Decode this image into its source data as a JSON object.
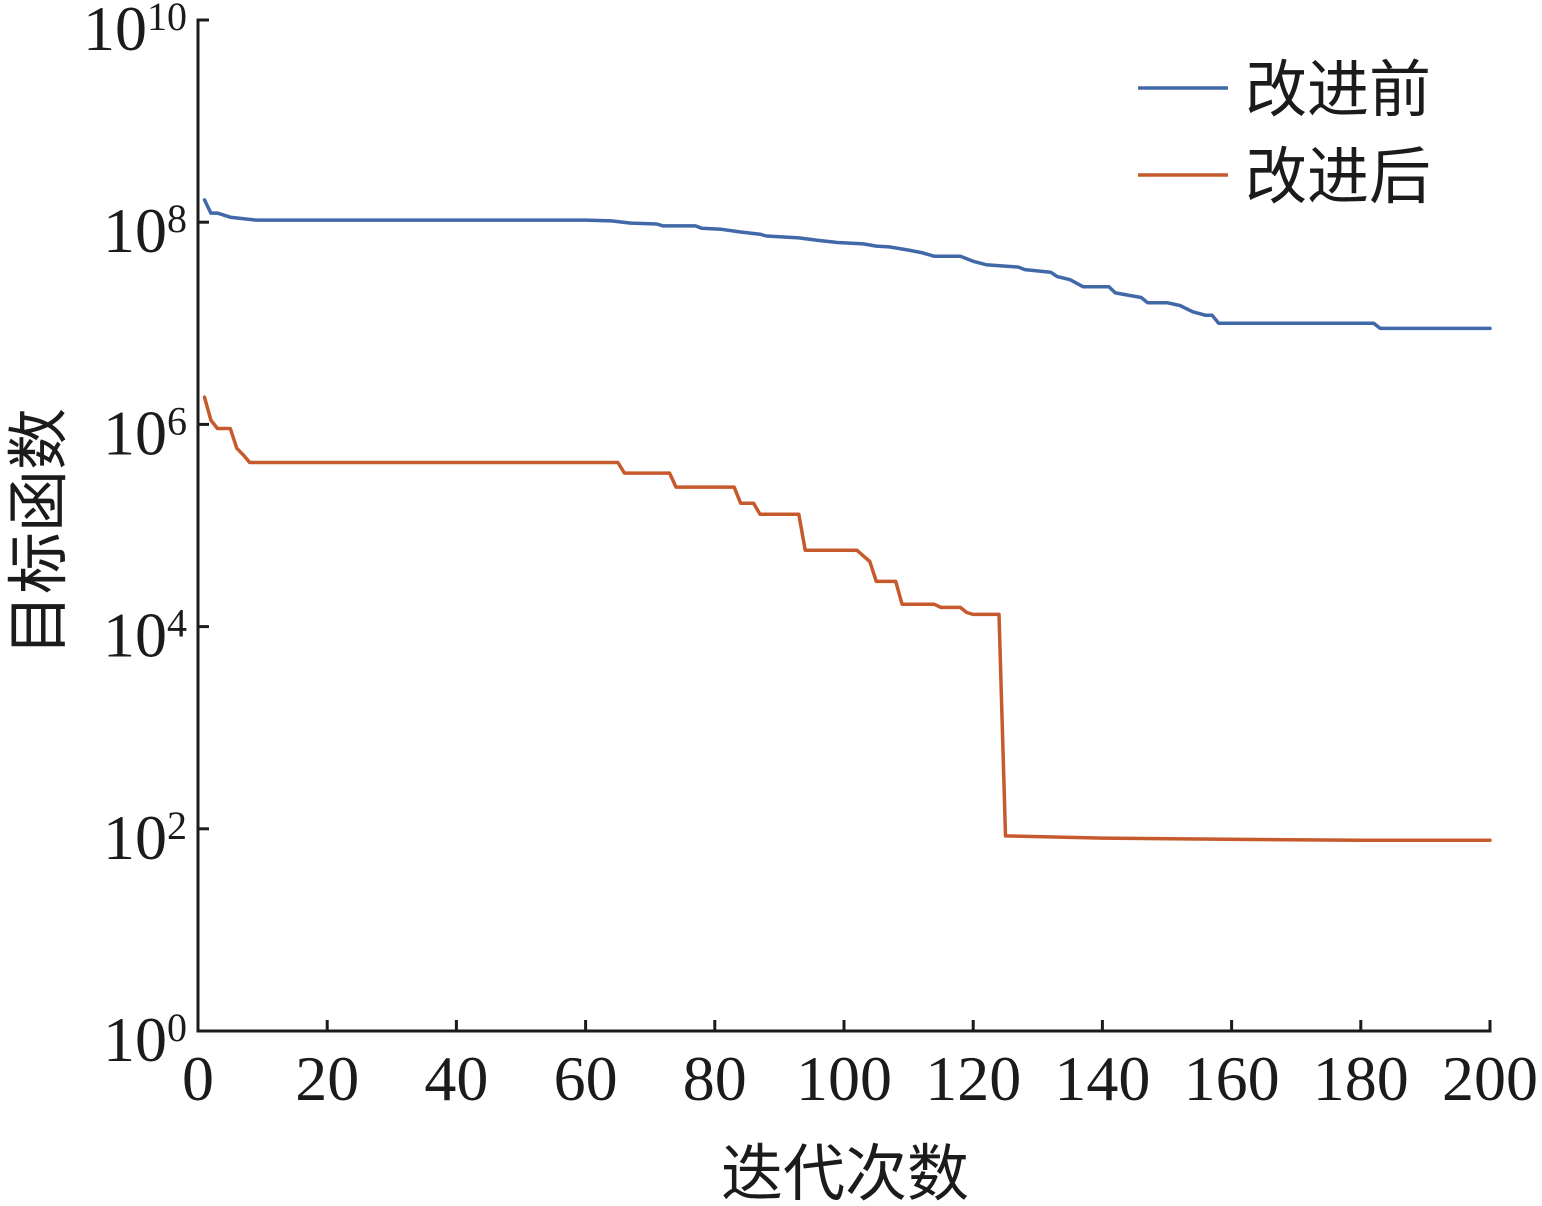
{
  "chart_data": {
    "type": "line",
    "xlabel": "迭代次数",
    "ylabel": "目标函数",
    "xlim": [
      0,
      200
    ],
    "ylim": [
      1,
      10000000000
    ],
    "yscale": "log",
    "grid": false,
    "legend": {
      "position": "top-right"
    },
    "x_ticks": [
      {
        "value": 0,
        "label": "0"
      },
      {
        "value": 20,
        "label": "20"
      },
      {
        "value": 40,
        "label": "40"
      },
      {
        "value": 60,
        "label": "60"
      },
      {
        "value": 80,
        "label": "80"
      },
      {
        "value": 100,
        "label": "100"
      },
      {
        "value": 120,
        "label": "120"
      },
      {
        "value": 140,
        "label": "140"
      },
      {
        "value": 160,
        "label": "160"
      },
      {
        "value": 180,
        "label": "180"
      },
      {
        "value": 200,
        "label": "200"
      }
    ],
    "y_ticks": [
      {
        "value": 1,
        "base": "10",
        "exponent": "0"
      },
      {
        "value": 100,
        "base": "10",
        "exponent": "2"
      },
      {
        "value": 10000,
        "base": "10",
        "exponent": "4"
      },
      {
        "value": 1000000,
        "base": "10",
        "exponent": "6"
      },
      {
        "value": 100000000,
        "base": "10",
        "exponent": "8"
      },
      {
        "value": 10000000000,
        "base": "10",
        "exponent": "10"
      }
    ],
    "series": [
      {
        "name": "改进前",
        "color": "#4169a8",
        "x": [
          1,
          2,
          3,
          5,
          9,
          10,
          60,
          64,
          67,
          71,
          72,
          77,
          78,
          81,
          84,
          87,
          88,
          93,
          96,
          99,
          103,
          105,
          107,
          110,
          112,
          114,
          118,
          120,
          122,
          127,
          128,
          132,
          133,
          135,
          137,
          141,
          142,
          146,
          147,
          150,
          152,
          154,
          156,
          157,
          158,
          182,
          183,
          200
        ],
        "y": [
          166000000.0,
          123000000.0,
          123000000.0,
          112000000.0,
          105000000.0,
          105000000.0,
          105000000.0,
          103000000.0,
          98000000.0,
          96000000.0,
          92000000.0,
          92000000.0,
          87000000.0,
          85000000.0,
          80000000.0,
          76000000.0,
          73000000.0,
          70000000.0,
          66000000.0,
          63000000.0,
          61000000.0,
          58000000.0,
          57000000.0,
          53000000.0,
          50000000.0,
          46000000.0,
          46000000.0,
          41000000.0,
          38000000.0,
          36000000.0,
          34000000.0,
          32000000.0,
          29000000.0,
          27000000.0,
          23000000.0,
          23000000.0,
          20000000.0,
          18000000.0,
          16000000.0,
          16000000.0,
          15000000.0,
          13000000.0,
          12000000.0,
          12000000.0,
          10000000.0,
          10000000.0,
          8900000.0,
          8900000.0
        ]
      },
      {
        "name": "改进后",
        "color": "#c65a2d",
        "x": [
          1,
          2,
          3,
          5,
          6,
          7,
          8,
          65,
          66,
          73,
          74,
          83,
          84,
          86,
          87,
          93,
          94,
          102,
          103,
          104,
          105,
          108,
          109,
          114,
          115,
          118,
          119,
          120,
          124,
          125,
          140,
          157,
          180,
          200
        ],
        "y": [
          1860000.0,
          1100000.0,
          910000.0,
          910000.0,
          580000.0,
          500000.0,
          420000.0,
          420000.0,
          330000.0,
          330000.0,
          240000.0,
          240000.0,
          166000.0,
          166000.0,
          129000.0,
          129000.0,
          57000.0,
          57000.0,
          50000.0,
          44000.0,
          28000.0,
          28000.0,
          16600.0,
          16600.0,
          15500.0,
          15500.0,
          13800.0,
          13200.0,
          13200.0,
          85,
          81,
          79,
          77,
          77
        ]
      }
    ]
  }
}
